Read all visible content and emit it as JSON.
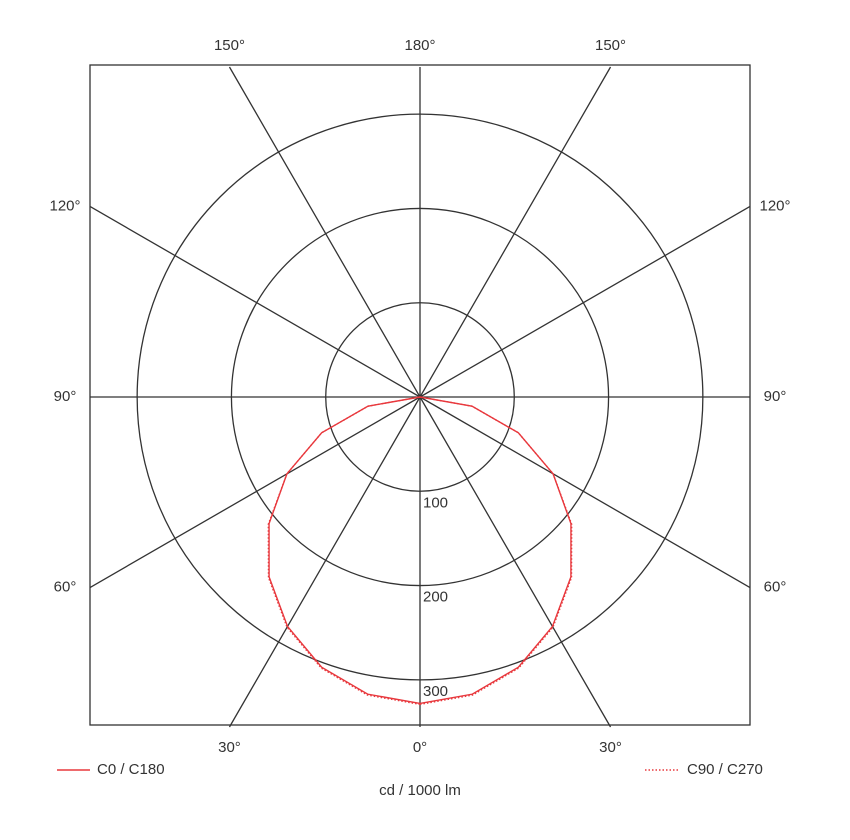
{
  "chart_data": {
    "type": "polar",
    "angles": [
      0,
      10,
      20,
      30,
      40,
      50,
      60,
      70,
      80,
      90
    ],
    "series": [
      {
        "name": "C0 / C180",
        "color": "#e8383d",
        "style": "solid",
        "values": [
          325,
          320,
          305,
          281,
          249,
          209,
          163,
          111,
          56,
          0
        ]
      },
      {
        "name": "C90 / C270",
        "color": "#e8383d",
        "style": "dotted",
        "values": [
          326,
          321,
          306,
          282,
          250,
          210,
          163,
          111,
          56,
          0
        ]
      }
    ],
    "rlim": [
      0,
      350
    ],
    "rticks": [
      100,
      200,
      300
    ],
    "angle_ticks": [
      {
        "value": 0,
        "label": "0°"
      },
      {
        "value": 30,
        "label": "30°"
      },
      {
        "value": 60,
        "label": "60°"
      },
      {
        "value": 90,
        "label": "90°"
      },
      {
        "value": 120,
        "label": "120°"
      },
      {
        "value": 150,
        "label": "150°"
      },
      {
        "value": 180,
        "label": "180°"
      }
    ],
    "r_axis_label": "cd / 1000 lm",
    "grid": true
  }
}
